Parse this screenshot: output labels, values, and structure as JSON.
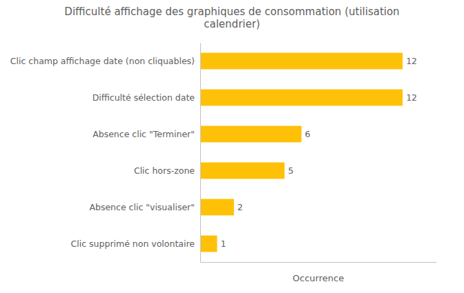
{
  "chart_data": {
    "type": "bar",
    "orientation": "horizontal",
    "title": "Difficulté affichage des graphiques de consommation (utilisation\ncalendrier)",
    "categories": [
      "Clic supprimé non volontaire",
      "Absence clic \"visualiser\"",
      "Clic hors-zone",
      "Absence clic \"Terminer\"",
      "Difficulté sélection date",
      "Clic champ affichage date (non cliquables)"
    ],
    "values": [
      1,
      2,
      5,
      6,
      12,
      12
    ],
    "color": "#FFC107",
    "xlabel": "Occurrence",
    "xlim": [
      0,
      14
    ],
    "data_labels": true,
    "tick_labels": "y",
    "grid": false
  }
}
